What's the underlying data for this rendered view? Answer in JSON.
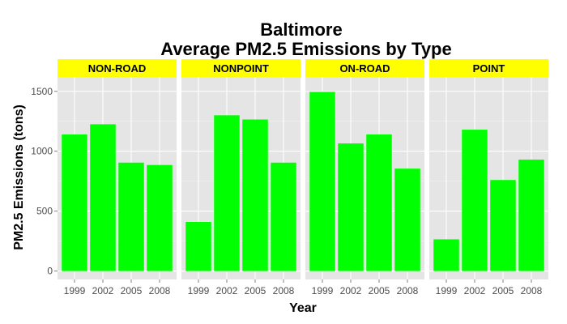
{
  "chart_data": {
    "type": "bar",
    "title": "Baltimore",
    "subtitle": "Average PM2.5 Emissions by Type",
    "xlabel": "Year",
    "ylabel": "PM2.5 Emissions (tons)",
    "categories": [
      "1999",
      "2002",
      "2005",
      "2008"
    ],
    "ylim": [
      -70,
      1620
    ],
    "yticks": [
      0,
      500,
      1000,
      1500
    ],
    "grid": true,
    "bar_color": "#00ff00",
    "strip_color": "#ffff00",
    "panel_color": "#e5e5e5",
    "facets": [
      {
        "name": "NON-ROAD",
        "values": [
          1140,
          1225,
          905,
          885
        ]
      },
      {
        "name": "NONPOINT",
        "values": [
          410,
          1300,
          1265,
          905
        ]
      },
      {
        "name": "ON-ROAD",
        "values": [
          1495,
          1065,
          1140,
          855
        ]
      },
      {
        "name": "POINT",
        "values": [
          265,
          1180,
          760,
          930
        ]
      }
    ]
  }
}
